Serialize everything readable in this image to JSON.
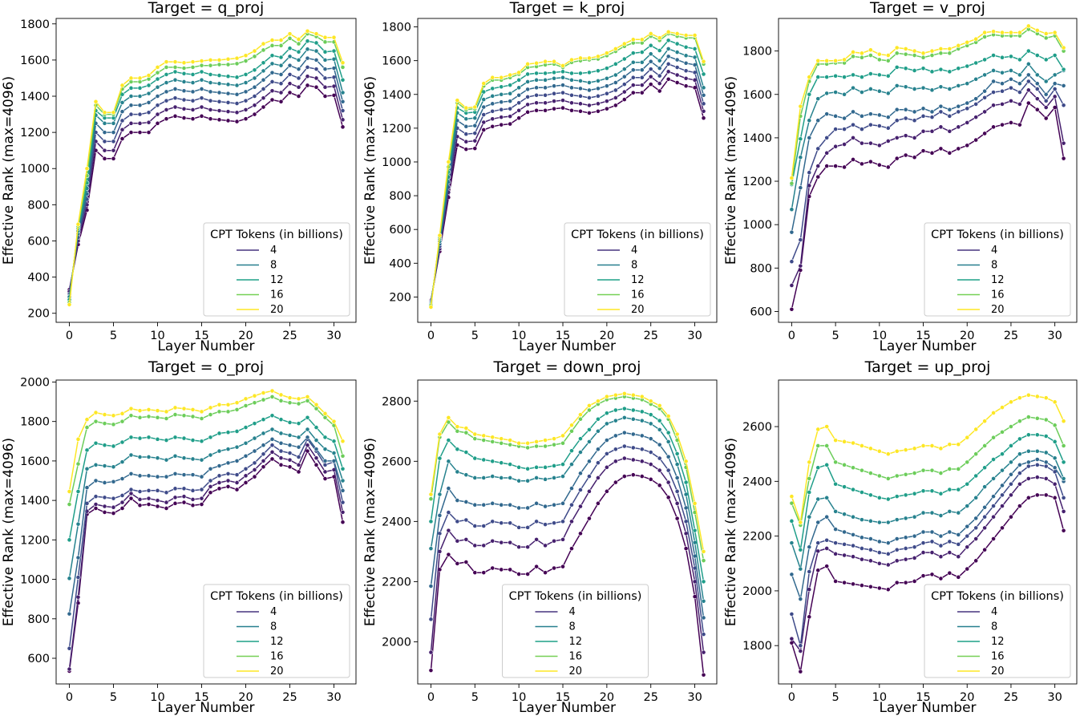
{
  "chart_data": [
    {
      "type": "line",
      "title": "Target = q_proj",
      "xlabel": "Layer Number",
      "ylabel": "Effective Rank (max=4096)",
      "xlim": [
        -1.5,
        32.5
      ],
      "ylim": [
        150,
        1830
      ],
      "xticks": [
        0,
        5,
        10,
        15,
        20,
        25,
        30
      ],
      "yticks": [
        200,
        400,
        600,
        800,
        1000,
        1200,
        1400,
        1600,
        1800
      ],
      "legend": {
        "title": "CPT Tokens (in billions)",
        "entries": [
          "4",
          "8",
          "12",
          "16",
          "20"
        ],
        "placement": "lower-right"
      },
      "curves": [
        {
          "base": [
            330,
            580,
            770,
            1100,
            1055,
            1055,
            1165,
            1200,
            1200,
            1200,
            1250,
            1275,
            1290,
            1280,
            1275,
            1290,
            1275,
            1270,
            1265,
            1260,
            1275,
            1300,
            1340,
            1380,
            1370,
            1420,
            1400,
            1460,
            1450,
            1400,
            1405,
            1230
          ],
          "top": 410
        },
        {
          "base": 0,
          "top": 345
        }
      ]
    }
  ]
}
